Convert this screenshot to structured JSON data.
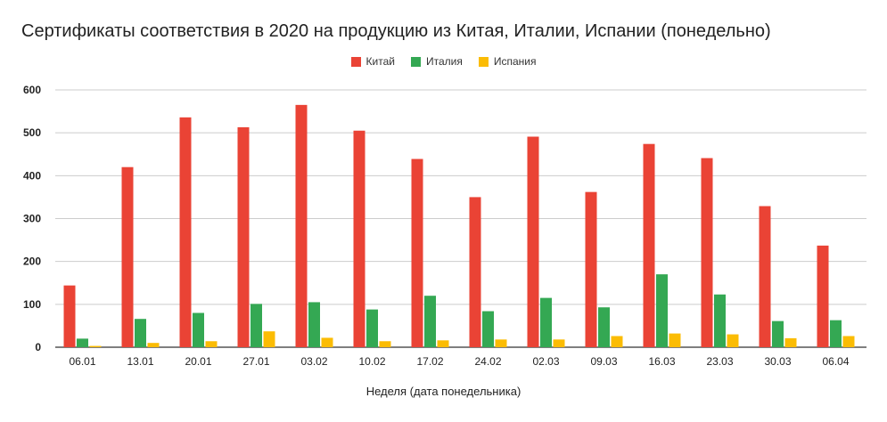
{
  "chart_data": {
    "type": "bar",
    "title": "Сертификаты соответствия в 2020 на продукцию из Китая, Италии, Испании (понедельно)",
    "xlabel": "Неделя (дата понедельника)",
    "ylabel": "",
    "ylim": [
      0,
      600
    ],
    "yticks": [
      "0",
      "100",
      "200",
      "300",
      "400",
      "500",
      "600"
    ],
    "grid": true,
    "legend_position": "top-center",
    "categories": [
      "06.01",
      "13.01",
      "20.01",
      "27.01",
      "03.02",
      "10.02",
      "17.02",
      "24.02",
      "02.03",
      "09.03",
      "16.03",
      "23.03",
      "30.03",
      "06.04"
    ],
    "series": [
      {
        "name": "Китай",
        "color": "#ea4335",
        "values": [
          144,
          420,
          536,
          513,
          565,
          505,
          439,
          350,
          491,
          362,
          474,
          441,
          329,
          237
        ]
      },
      {
        "name": "Италия",
        "color": "#34a853",
        "values": [
          20,
          66,
          80,
          101,
          105,
          88,
          120,
          84,
          115,
          93,
          170,
          123,
          61,
          63
        ]
      },
      {
        "name": "Испания",
        "color": "#fbbc04",
        "values": [
          3,
          10,
          14,
          37,
          22,
          14,
          16,
          18,
          18,
          26,
          32,
          30,
          21,
          26
        ]
      }
    ]
  }
}
